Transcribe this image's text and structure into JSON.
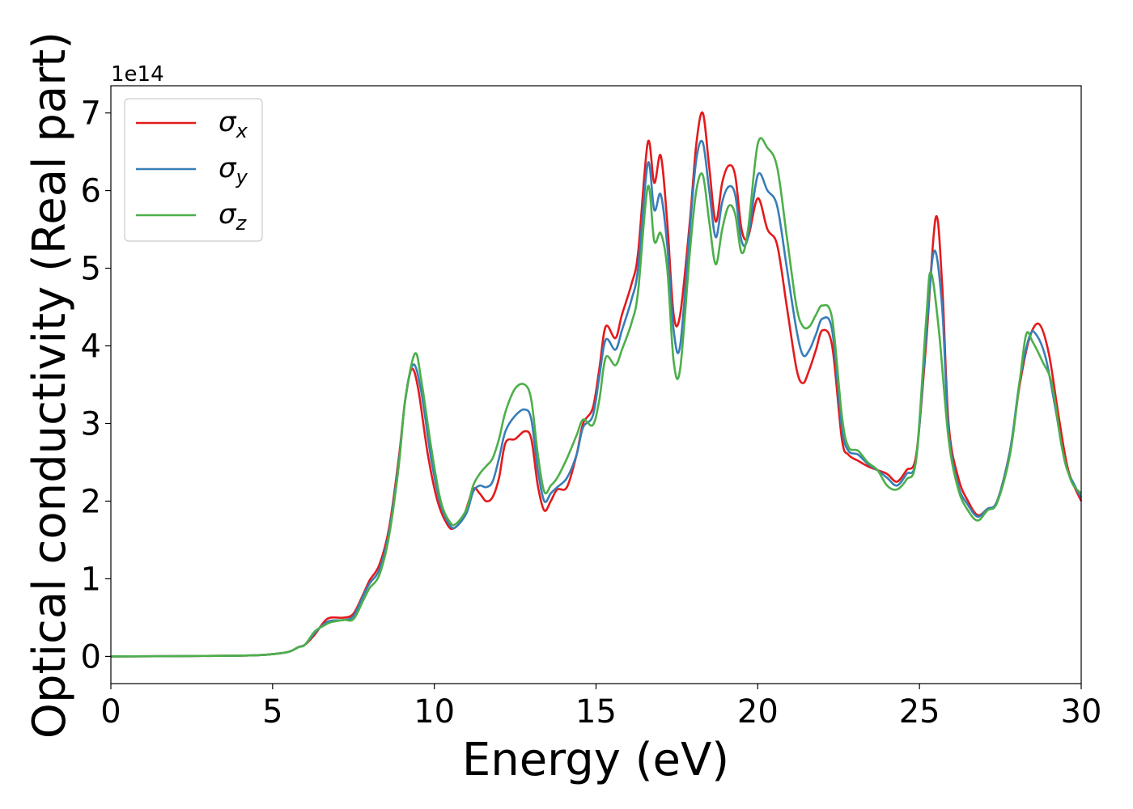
{
  "chart_data": {
    "type": "line",
    "xlabel": "Energy (eV)",
    "ylabel": "Optical conductivity (Real part)",
    "y_offset_label": "1e14",
    "xlim": [
      0,
      30
    ],
    "ylim": [
      -0.35,
      7.35
    ],
    "x_ticks": [
      0,
      5,
      10,
      15,
      20,
      25,
      30
    ],
    "y_ticks": [
      0,
      1,
      2,
      3,
      4,
      5,
      6,
      7
    ],
    "grid": false,
    "legend_position": "top-left",
    "series": [
      {
        "name": "σ",
        "subscript": "x",
        "color": "#e41a1c",
        "points": [
          [
            0,
            0
          ],
          [
            4,
            0.01
          ],
          [
            5,
            0.03
          ],
          [
            5.5,
            0.06
          ],
          [
            5.8,
            0.12
          ],
          [
            6.0,
            0.15
          ],
          [
            6.3,
            0.28
          ],
          [
            6.6,
            0.45
          ],
          [
            6.8,
            0.5
          ],
          [
            7.2,
            0.5
          ],
          [
            7.5,
            0.55
          ],
          [
            7.8,
            0.8
          ],
          [
            8.0,
            0.98
          ],
          [
            8.3,
            1.18
          ],
          [
            8.6,
            1.65
          ],
          [
            8.9,
            2.55
          ],
          [
            9.1,
            3.3
          ],
          [
            9.3,
            3.7
          ],
          [
            9.5,
            3.45
          ],
          [
            9.8,
            2.6
          ],
          [
            10.1,
            2.0
          ],
          [
            10.4,
            1.7
          ],
          [
            10.6,
            1.65
          ],
          [
            10.9,
            1.8
          ],
          [
            11.2,
            2.15
          ],
          [
            11.4,
            2.1
          ],
          [
            11.6,
            2.0
          ],
          [
            11.8,
            2.05
          ],
          [
            12.0,
            2.3
          ],
          [
            12.2,
            2.75
          ],
          [
            12.5,
            2.8
          ],
          [
            12.8,
            2.9
          ],
          [
            13.0,
            2.8
          ],
          [
            13.2,
            2.2
          ],
          [
            13.4,
            1.88
          ],
          [
            13.6,
            2.0
          ],
          [
            13.8,
            2.15
          ],
          [
            14.1,
            2.18
          ],
          [
            14.4,
            2.6
          ],
          [
            14.6,
            3.0
          ],
          [
            14.9,
            3.2
          ],
          [
            15.1,
            3.7
          ],
          [
            15.3,
            4.25
          ],
          [
            15.6,
            4.1
          ],
          [
            15.8,
            4.4
          ],
          [
            16.1,
            4.8
          ],
          [
            16.3,
            5.2
          ],
          [
            16.6,
            6.62
          ],
          [
            16.8,
            6.1
          ],
          [
            17.0,
            6.45
          ],
          [
            17.2,
            5.6
          ],
          [
            17.4,
            4.4
          ],
          [
            17.6,
            4.4
          ],
          [
            17.9,
            5.6
          ],
          [
            18.1,
            6.6
          ],
          [
            18.3,
            7.0
          ],
          [
            18.5,
            6.3
          ],
          [
            18.7,
            5.6
          ],
          [
            18.9,
            6.1
          ],
          [
            19.1,
            6.32
          ],
          [
            19.3,
            6.2
          ],
          [
            19.5,
            5.5
          ],
          [
            19.7,
            5.4
          ],
          [
            20.0,
            5.9
          ],
          [
            20.3,
            5.5
          ],
          [
            20.6,
            5.3
          ],
          [
            20.9,
            4.5
          ],
          [
            21.2,
            3.7
          ],
          [
            21.4,
            3.52
          ],
          [
            21.6,
            3.7
          ],
          [
            21.8,
            3.95
          ],
          [
            22.0,
            4.2
          ],
          [
            22.3,
            4.0
          ],
          [
            22.6,
            2.8
          ],
          [
            22.8,
            2.6
          ],
          [
            23.1,
            2.52
          ],
          [
            23.4,
            2.45
          ],
          [
            23.7,
            2.4
          ],
          [
            24.0,
            2.35
          ],
          [
            24.3,
            2.25
          ],
          [
            24.6,
            2.4
          ],
          [
            24.9,
            2.6
          ],
          [
            25.2,
            4.0
          ],
          [
            25.5,
            5.65
          ],
          [
            25.7,
            4.8
          ],
          [
            25.9,
            3.0
          ],
          [
            26.2,
            2.3
          ],
          [
            26.5,
            2.0
          ],
          [
            26.8,
            1.82
          ],
          [
            27.1,
            1.9
          ],
          [
            27.4,
            2.0
          ],
          [
            27.8,
            2.65
          ],
          [
            28.1,
            3.5
          ],
          [
            28.4,
            4.1
          ],
          [
            28.7,
            4.28
          ],
          [
            29.0,
            3.9
          ],
          [
            29.3,
            3.1
          ],
          [
            29.6,
            2.4
          ],
          [
            30.0,
            2.0
          ]
        ]
      },
      {
        "name": "σ",
        "subscript": "y",
        "color": "#377eb8",
        "points": [
          [
            0,
            0
          ],
          [
            4,
            0.01
          ],
          [
            5,
            0.03
          ],
          [
            5.5,
            0.06
          ],
          [
            5.8,
            0.12
          ],
          [
            6.0,
            0.15
          ],
          [
            6.3,
            0.3
          ],
          [
            6.6,
            0.42
          ],
          [
            6.8,
            0.46
          ],
          [
            7.2,
            0.47
          ],
          [
            7.5,
            0.52
          ],
          [
            7.8,
            0.78
          ],
          [
            8.0,
            0.94
          ],
          [
            8.3,
            1.12
          ],
          [
            8.6,
            1.6
          ],
          [
            8.9,
            2.5
          ],
          [
            9.1,
            3.3
          ],
          [
            9.35,
            3.76
          ],
          [
            9.6,
            3.4
          ],
          [
            9.9,
            2.55
          ],
          [
            10.2,
            1.95
          ],
          [
            10.5,
            1.68
          ],
          [
            10.7,
            1.68
          ],
          [
            11.0,
            1.85
          ],
          [
            11.2,
            2.12
          ],
          [
            11.4,
            2.2
          ],
          [
            11.6,
            2.18
          ],
          [
            11.8,
            2.25
          ],
          [
            12.0,
            2.55
          ],
          [
            12.2,
            2.9
          ],
          [
            12.5,
            3.1
          ],
          [
            12.8,
            3.18
          ],
          [
            13.0,
            3.05
          ],
          [
            13.2,
            2.4
          ],
          [
            13.4,
            2.0
          ],
          [
            13.6,
            2.1
          ],
          [
            13.8,
            2.18
          ],
          [
            14.1,
            2.3
          ],
          [
            14.4,
            2.6
          ],
          [
            14.6,
            2.95
          ],
          [
            14.9,
            3.1
          ],
          [
            15.1,
            3.6
          ],
          [
            15.3,
            4.08
          ],
          [
            15.6,
            3.95
          ],
          [
            15.8,
            4.2
          ],
          [
            16.1,
            4.6
          ],
          [
            16.3,
            5.0
          ],
          [
            16.6,
            6.35
          ],
          [
            16.8,
            5.75
          ],
          [
            17.0,
            5.95
          ],
          [
            17.2,
            5.3
          ],
          [
            17.4,
            4.2
          ],
          [
            17.6,
            4.0
          ],
          [
            17.9,
            5.5
          ],
          [
            18.1,
            6.4
          ],
          [
            18.3,
            6.62
          ],
          [
            18.5,
            6.0
          ],
          [
            18.7,
            5.4
          ],
          [
            18.9,
            5.85
          ],
          [
            19.1,
            6.05
          ],
          [
            19.3,
            5.95
          ],
          [
            19.5,
            5.35
          ],
          [
            19.7,
            5.4
          ],
          [
            20.0,
            6.2
          ],
          [
            20.3,
            6.0
          ],
          [
            20.6,
            5.8
          ],
          [
            20.9,
            5.0
          ],
          [
            21.2,
            4.2
          ],
          [
            21.4,
            3.88
          ],
          [
            21.6,
            3.95
          ],
          [
            21.8,
            4.15
          ],
          [
            22.0,
            4.35
          ],
          [
            22.3,
            4.2
          ],
          [
            22.6,
            2.95
          ],
          [
            22.8,
            2.65
          ],
          [
            23.1,
            2.6
          ],
          [
            23.4,
            2.48
          ],
          [
            23.7,
            2.4
          ],
          [
            24.0,
            2.3
          ],
          [
            24.3,
            2.2
          ],
          [
            24.6,
            2.35
          ],
          [
            24.9,
            2.55
          ],
          [
            25.2,
            4.1
          ],
          [
            25.45,
            5.22
          ],
          [
            25.7,
            4.5
          ],
          [
            25.9,
            2.9
          ],
          [
            26.2,
            2.2
          ],
          [
            26.5,
            1.95
          ],
          [
            26.8,
            1.8
          ],
          [
            27.1,
            1.9
          ],
          [
            27.4,
            2.0
          ],
          [
            27.8,
            2.65
          ],
          [
            28.1,
            3.55
          ],
          [
            28.4,
            4.12
          ],
          [
            28.6,
            4.15
          ],
          [
            28.9,
            3.85
          ],
          [
            29.2,
            3.2
          ],
          [
            29.5,
            2.5
          ],
          [
            29.8,
            2.2
          ],
          [
            30.0,
            2.05
          ]
        ]
      },
      {
        "name": "σ",
        "subscript": "z",
        "color": "#4daf4a",
        "points": [
          [
            0,
            0
          ],
          [
            4,
            0.01
          ],
          [
            5,
            0.03
          ],
          [
            5.5,
            0.06
          ],
          [
            5.8,
            0.12
          ],
          [
            6.0,
            0.15
          ],
          [
            6.3,
            0.32
          ],
          [
            6.6,
            0.4
          ],
          [
            6.8,
            0.44
          ],
          [
            7.2,
            0.47
          ],
          [
            7.5,
            0.48
          ],
          [
            7.8,
            0.72
          ],
          [
            8.0,
            0.88
          ],
          [
            8.3,
            1.05
          ],
          [
            8.6,
            1.55
          ],
          [
            8.9,
            2.45
          ],
          [
            9.1,
            3.3
          ],
          [
            9.4,
            3.9
          ],
          [
            9.6,
            3.55
          ],
          [
            9.9,
            2.7
          ],
          [
            10.2,
            2.0
          ],
          [
            10.5,
            1.72
          ],
          [
            10.7,
            1.72
          ],
          [
            11.0,
            1.9
          ],
          [
            11.2,
            2.2
          ],
          [
            11.4,
            2.35
          ],
          [
            11.6,
            2.45
          ],
          [
            11.8,
            2.55
          ],
          [
            12.0,
            2.8
          ],
          [
            12.2,
            3.15
          ],
          [
            12.5,
            3.45
          ],
          [
            12.8,
            3.5
          ],
          [
            13.0,
            3.3
          ],
          [
            13.2,
            2.6
          ],
          [
            13.4,
            2.12
          ],
          [
            13.6,
            2.2
          ],
          [
            13.8,
            2.3
          ],
          [
            14.1,
            2.55
          ],
          [
            14.4,
            2.85
          ],
          [
            14.6,
            3.05
          ],
          [
            14.9,
            2.98
          ],
          [
            15.1,
            3.3
          ],
          [
            15.3,
            3.85
          ],
          [
            15.6,
            3.75
          ],
          [
            15.8,
            3.95
          ],
          [
            16.1,
            4.3
          ],
          [
            16.3,
            4.7
          ],
          [
            16.6,
            6.05
          ],
          [
            16.8,
            5.35
          ],
          [
            17.0,
            5.45
          ],
          [
            17.2,
            5.0
          ],
          [
            17.4,
            3.8
          ],
          [
            17.6,
            3.7
          ],
          [
            17.9,
            5.2
          ],
          [
            18.1,
            6.0
          ],
          [
            18.3,
            6.2
          ],
          [
            18.5,
            5.6
          ],
          [
            18.7,
            5.05
          ],
          [
            18.9,
            5.5
          ],
          [
            19.1,
            5.8
          ],
          [
            19.3,
            5.7
          ],
          [
            19.5,
            5.2
          ],
          [
            19.7,
            5.5
          ],
          [
            20.0,
            6.6
          ],
          [
            20.3,
            6.55
          ],
          [
            20.6,
            6.3
          ],
          [
            20.9,
            5.4
          ],
          [
            21.2,
            4.5
          ],
          [
            21.4,
            4.25
          ],
          [
            21.6,
            4.25
          ],
          [
            21.8,
            4.4
          ],
          [
            22.0,
            4.52
          ],
          [
            22.3,
            4.35
          ],
          [
            22.6,
            3.1
          ],
          [
            22.8,
            2.7
          ],
          [
            23.1,
            2.65
          ],
          [
            23.4,
            2.5
          ],
          [
            23.7,
            2.4
          ],
          [
            24.0,
            2.2
          ],
          [
            24.3,
            2.15
          ],
          [
            24.6,
            2.28
          ],
          [
            24.9,
            2.55
          ],
          [
            25.2,
            4.3
          ],
          [
            25.35,
            4.95
          ],
          [
            25.6,
            4.2
          ],
          [
            25.9,
            2.8
          ],
          [
            26.2,
            2.15
          ],
          [
            26.5,
            1.88
          ],
          [
            26.8,
            1.75
          ],
          [
            27.1,
            1.88
          ],
          [
            27.4,
            1.98
          ],
          [
            27.8,
            2.6
          ],
          [
            28.1,
            3.55
          ],
          [
            28.3,
            4.15
          ],
          [
            28.5,
            4.05
          ],
          [
            28.8,
            3.8
          ],
          [
            29.1,
            3.5
          ],
          [
            29.4,
            2.7
          ],
          [
            29.7,
            2.25
          ],
          [
            30.0,
            2.1
          ]
        ]
      }
    ]
  }
}
